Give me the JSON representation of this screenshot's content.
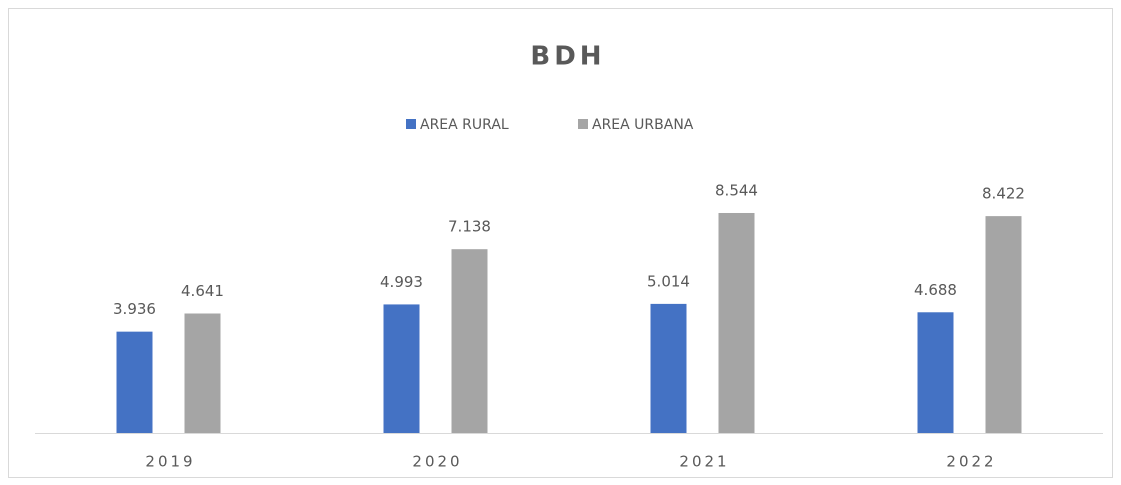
{
  "chart_data": {
    "type": "bar",
    "title": "BDH",
    "categories": [
      "2019",
      "2020",
      "2021",
      "2022"
    ],
    "series": [
      {
        "name": "AREA RURAL",
        "color": "#4472c4",
        "values": [
          3.936,
          4.993,
          5.014,
          4.688
        ]
      },
      {
        "name": "AREA URBANA",
        "color": "#a5a5a5",
        "values": [
          4.641,
          7.138,
          8.544,
          8.422
        ]
      }
    ],
    "ylim": [
      0,
      10
    ],
    "legend": "top"
  }
}
